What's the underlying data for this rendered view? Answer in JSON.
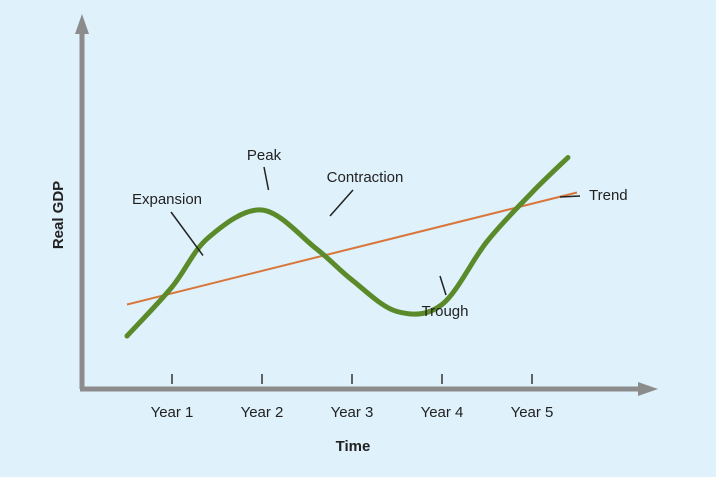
{
  "chart_data": {
    "type": "line",
    "title": "",
    "xlabel": "Time",
    "ylabel": "Real GDP",
    "categories": [
      "Year 1",
      "Year 2",
      "Year 3",
      "Year 4",
      "Year 5"
    ],
    "grid": false,
    "series": [
      {
        "name": "",
        "color": "#5b8a2b",
        "points": [
          {
            "x": 0.5,
            "y": 2.8
          },
          {
            "x": 1.0,
            "y": 4.2
          },
          {
            "x": 1.4,
            "y": 5.6
          },
          {
            "x": 2.0,
            "y": 6.4
          },
          {
            "x": 2.6,
            "y": 5.3
          },
          {
            "x": 3.0,
            "y": 4.4
          },
          {
            "x": 3.5,
            "y": 3.5
          },
          {
            "x": 4.0,
            "y": 3.7
          },
          {
            "x": 4.5,
            "y": 5.5
          },
          {
            "x": 5.0,
            "y": 6.9
          },
          {
            "x": 5.4,
            "y": 7.9
          }
        ]
      },
      {
        "name": "Trend",
        "color": "#d9763a",
        "points": [
          {
            "x": 0.5,
            "y": 3.7
          },
          {
            "x": 5.5,
            "y": 6.9
          }
        ]
      }
    ],
    "annotations": [
      {
        "text": "Expansion",
        "x": 1.3,
        "y": 5.1
      },
      {
        "text": "Peak",
        "x": 2.05,
        "y": 6.4
      },
      {
        "text": "Contraction",
        "x": 2.75,
        "y": 5.6
      },
      {
        "text": "Trough",
        "x": 4.0,
        "y": 3.55
      },
      {
        "text": "Trend",
        "x": 5.5,
        "y": 6.9
      }
    ]
  }
}
